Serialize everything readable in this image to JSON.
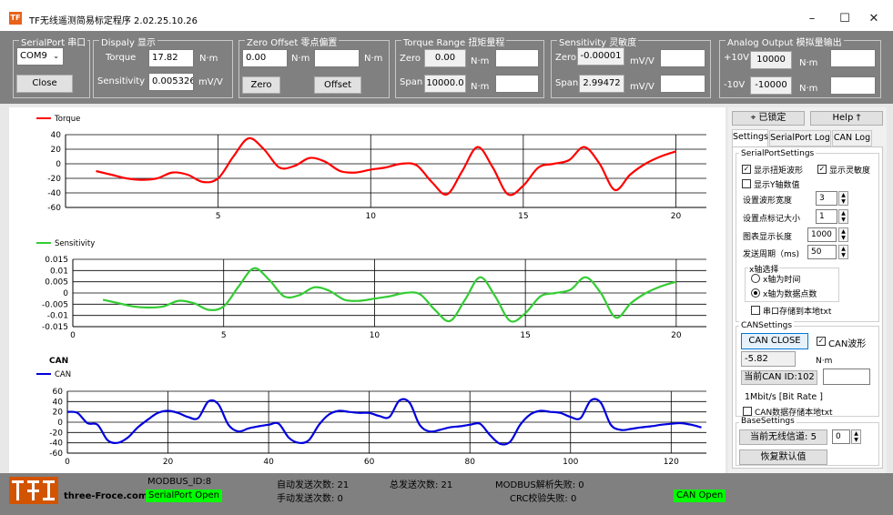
{
  "window": {
    "title": "TF无线遥测简易标定程序  2.02.25.10.26",
    "icon_text": "TF"
  },
  "serialport": {
    "group": "SerialPort 串口",
    "port": "COM9",
    "close_label": "Close"
  },
  "display": {
    "group": "Dispaly 显示",
    "torque_label": "Torque",
    "torque_value": "17.82",
    "torque_unit": "N·m",
    "sens_label": "Sensitivity",
    "sens_value": "0.005326",
    "sens_unit": "mV/V"
  },
  "zero_offset": {
    "group": "Zero Offset 零点偏置",
    "value1": "0.00",
    "unit1": "N·m",
    "value2": "",
    "unit2": "N·m",
    "zero_label": "Zero",
    "offset_label": "Offset"
  },
  "torque_range": {
    "group": "Torque Range 扭矩量程",
    "zero_label": "Zero",
    "zero_value": "0.00",
    "zero_unit": "N·m",
    "span_label": "Span",
    "span_value": "10000.0",
    "span_unit": "N·m"
  },
  "sensitivity": {
    "group": "Sensitivity 灵敏度",
    "zero_label": "Zero",
    "zero_value": "-0.00001",
    "zero_unit": "mV/V",
    "span_label": "Span",
    "span_value": "2.99472",
    "span_unit": "mV/V"
  },
  "analog": {
    "group": "Analog Output 模拟量输出",
    "p10_label": "+10V",
    "p10_value": "10000",
    "p10_unit": "N·m",
    "m10_label": "-10V",
    "m10_value": "-10000",
    "m10_unit": "N·m"
  },
  "right": {
    "lock_label": "已锁定",
    "help_label": "Help",
    "tabs": [
      "Settings",
      "SerialPort Log",
      "CAN Log"
    ],
    "serial_group": "SerialPortSettings",
    "show_torque": "显示扭矩波形",
    "show_sens": "显示灵敏度",
    "show_y": "显示Y轴数值",
    "wave_width_label": "设置波形宽度",
    "wave_width": "3",
    "marker_size_label": "设置点标记大小",
    "marker_size": "1",
    "chart_len_label": "图表显示长度",
    "chart_len": "1000",
    "period_label": "发送周期（ms)",
    "period": "50",
    "xaxis_group": "x轴选择",
    "x_time": "x轴为时间",
    "x_points": "x轴为数据点数",
    "save_txt": "串口存储到本地txt",
    "can_group": "CANSettings",
    "can_close": "CAN CLOSE",
    "can_wave": "CAN波形",
    "can_value": "-5.82",
    "can_unit": "N·m",
    "can_id_label": "当前CAN  ID:102",
    "can_id_input": "",
    "bitrate": "1Mbit/s [Bit Rate ]",
    "can_save": "CAN数据存储本地txt",
    "base_group": "BaseSettings",
    "channel_label": "当前无线信道:  5",
    "channel_value": "0",
    "restore_label": "恢复默认值"
  },
  "status": {
    "logo_text": "three-Froce.com",
    "modbus_id": "MODBUS_ID:8",
    "serial_open": "SerialPort Open",
    "auto_send": "自动发送次数:  21",
    "manual_send": "手动发送次数:  0",
    "total_send": "总发送次数:  21",
    "modbus_fail": "MODBUS解析失败:  0",
    "crc_fail": "CRC校验失败:  0",
    "can_open": "CAN Open"
  },
  "colors": {
    "torque": "#ff0000",
    "sensitivity": "#33cc33",
    "can": "#0000dd",
    "status_green": "#00ff00",
    "panel_gray": "#808080"
  },
  "chart_data": [
    {
      "type": "line",
      "title": "",
      "series": [
        {
          "name": "Torque",
          "color": "#ff0000",
          "x": [
            1,
            1.5,
            2,
            2.5,
            3,
            3.5,
            4,
            4.5,
            5,
            5.5,
            6,
            6.5,
            7,
            7.5,
            8,
            8.5,
            9,
            9.5,
            10,
            10.5,
            11,
            11.5,
            12,
            12.5,
            13,
            13.5,
            14,
            14.5,
            15,
            15.5,
            16,
            16.5,
            17,
            17.5,
            18,
            18.5,
            19,
            19.5,
            20
          ],
          "y": [
            -10,
            -15,
            -20,
            -22,
            -20,
            -12,
            -15,
            -25,
            -20,
            10,
            35,
            20,
            -5,
            -3,
            8,
            3,
            -10,
            -12,
            -8,
            -5,
            0,
            -2,
            -25,
            -42,
            -10,
            23,
            -5,
            -42,
            -30,
            -5,
            0,
            5,
            23,
            0,
            -36,
            -15,
            0,
            10,
            17
          ]
        }
      ],
      "xlim": [
        0,
        21
      ],
      "ylim": [
        -60,
        40
      ],
      "xticks": [
        5,
        10,
        15,
        20
      ],
      "yticks": [
        40,
        20,
        0,
        -20,
        -40,
        -60
      ]
    },
    {
      "type": "line",
      "title": "",
      "series": [
        {
          "name": "Sensitivity",
          "color": "#33cc33",
          "x": [
            1,
            1.5,
            2,
            2.5,
            3,
            3.5,
            4,
            4.5,
            5,
            5.5,
            6,
            6.5,
            7,
            7.5,
            8,
            8.5,
            9,
            9.5,
            10,
            10.5,
            11,
            11.5,
            12,
            12.5,
            13,
            13.5,
            14,
            14.5,
            15,
            15.5,
            16,
            16.5,
            17,
            17.5,
            18,
            18.5,
            19,
            19.5,
            20
          ],
          "y": [
            -0.003,
            -0.0045,
            -0.006,
            -0.0065,
            -0.006,
            -0.0035,
            -0.0045,
            -0.0075,
            -0.006,
            0.003,
            0.011,
            0.006,
            -0.0015,
            -0.001,
            0.0025,
            0.001,
            -0.003,
            -0.0035,
            -0.0025,
            -0.0015,
            0,
            -0.0005,
            -0.0075,
            -0.0125,
            -0.003,
            0.007,
            -0.0015,
            -0.0125,
            -0.009,
            -0.0015,
            0,
            0.0015,
            0.007,
            0,
            -0.011,
            -0.0045,
            0,
            0.003,
            0.005
          ]
        }
      ],
      "xlim": [
        0,
        21
      ],
      "ylim": [
        -0.015,
        0.015
      ],
      "xticks": [
        0,
        5,
        10,
        15,
        20
      ],
      "yticks": [
        0.015,
        0.01,
        0.005,
        0,
        -0.005,
        -0.01,
        -0.015
      ]
    },
    {
      "type": "line",
      "title": "CAN",
      "series": [
        {
          "name": "CAN",
          "color": "#0000dd",
          "x": [
            0,
            2,
            4,
            6,
            8,
            10,
            12,
            14,
            16,
            18,
            20,
            22,
            24,
            26,
            28,
            30,
            32,
            34,
            36,
            38,
            40,
            42,
            44,
            46,
            48,
            50,
            52,
            54,
            56,
            58,
            60,
            62,
            64,
            66,
            68,
            70,
            72,
            74,
            76,
            78,
            80,
            82,
            84,
            86,
            88,
            90,
            92,
            94,
            96,
            98,
            100,
            102,
            104,
            106,
            108,
            110,
            112,
            114,
            116,
            118,
            120,
            122,
            124,
            126
          ],
          "y": [
            20,
            18,
            -2,
            -5,
            -35,
            -40,
            -30,
            -10,
            5,
            18,
            22,
            18,
            10,
            8,
            40,
            35,
            -5,
            -18,
            -12,
            -8,
            -5,
            -3,
            -30,
            -40,
            -35,
            -5,
            15,
            22,
            20,
            18,
            18,
            12,
            10,
            42,
            38,
            -5,
            -18,
            -15,
            -10,
            -8,
            -5,
            -3,
            -25,
            -42,
            -38,
            -5,
            15,
            22,
            20,
            18,
            10,
            8,
            42,
            38,
            -5,
            -15,
            -13,
            -10,
            -8,
            -5,
            -3,
            -2,
            -5,
            -10
          ]
        }
      ],
      "xlim": [
        0,
        127
      ],
      "ylim": [
        -60,
        60
      ],
      "xticks": [
        0,
        20,
        40,
        60,
        80,
        100,
        120
      ],
      "yticks": [
        60,
        40,
        20,
        0,
        -20,
        -40,
        -60
      ]
    }
  ]
}
